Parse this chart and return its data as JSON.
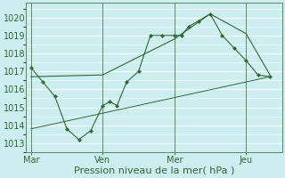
{
  "background_color": "#cceef0",
  "grid_color": "#ffffff",
  "line_color": "#2d6a2d",
  "xlabel": "Pression niveau de la mer( hPa )",
  "ylim": [
    1012.5,
    1020.8
  ],
  "yticks": [
    1013,
    1014,
    1015,
    1016,
    1017,
    1018,
    1019,
    1020
  ],
  "xtick_labels": [
    "Mar",
    "Ven",
    "Mer",
    "Jeu"
  ],
  "xtick_positions": [
    0,
    30,
    60,
    90
  ],
  "vline_positions": [
    0,
    30,
    60,
    90
  ],
  "series1_x": [
    0,
    5,
    10,
    15,
    20,
    25,
    30,
    33,
    36,
    40,
    45,
    50,
    55,
    60,
    63,
    66,
    70,
    75,
    80,
    85,
    90,
    95,
    100
  ],
  "series1_y": [
    1017.2,
    1016.4,
    1015.6,
    1013.8,
    1013.2,
    1013.7,
    1015.1,
    1015.3,
    1015.1,
    1016.4,
    1017.0,
    1019.0,
    1019.0,
    1019.0,
    1019.0,
    1019.5,
    1019.8,
    1020.2,
    1019.0,
    1018.3,
    1017.6,
    1016.8,
    1016.7
  ],
  "series2_x": [
    0,
    30,
    60,
    75,
    90,
    100
  ],
  "series2_y": [
    1016.7,
    1016.8,
    1018.8,
    1020.2,
    1019.1,
    1016.8
  ],
  "series3_x": [
    0,
    100
  ],
  "series3_y": [
    1013.8,
    1016.7
  ],
  "xlim": [
    -2,
    105
  ],
  "figsize": [
    3.2,
    2.0
  ],
  "dpi": 100,
  "fontsize_tick": 7,
  "fontsize_xlabel": 8
}
